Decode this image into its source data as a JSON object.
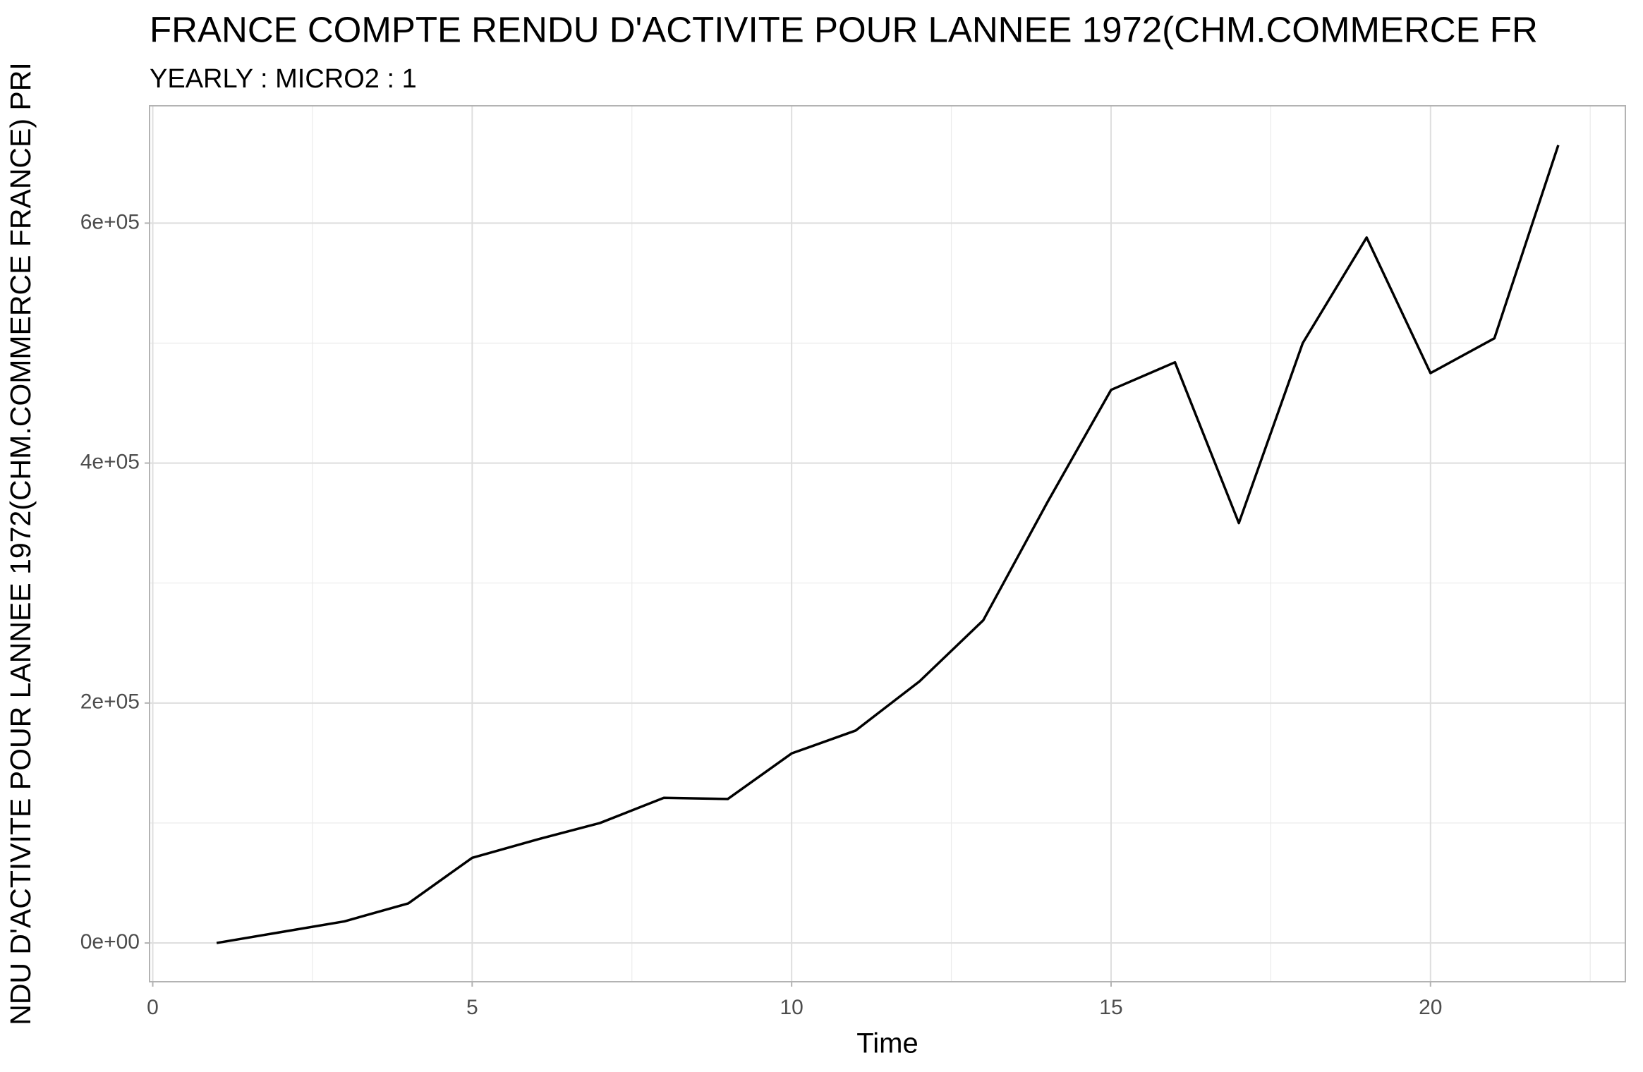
{
  "chart_data": {
    "type": "line",
    "title": "FRANCE COMPTE RENDU D'ACTIVITE POUR LANNEE 1972(CHM.COMMERCE FR",
    "subtitle": "YEARLY : MICRO2 : 1",
    "x_label": "Time",
    "y_label": "NDU D'ACTIVITE POUR LANNEE 1972(CHM.COMMERCE FRANCE) PRI",
    "x": [
      1,
      2,
      3,
      4,
      5,
      6,
      7,
      8,
      9,
      10,
      11,
      12,
      13,
      14,
      15,
      16,
      17,
      18,
      19,
      20,
      21,
      22
    ],
    "values": [
      0,
      9000,
      18000,
      33000,
      71000,
      86000,
      100000,
      121000,
      120000,
      158000,
      177000,
      218000,
      269000,
      367000,
      461000,
      484000,
      350000,
      500000,
      588000,
      475000,
      504000,
      665000
    ],
    "color": "#000000",
    "xlim": [
      -0.05,
      23.05
    ],
    "ylim": [
      -32300,
      697800
    ],
    "xticks": [
      0,
      5,
      10,
      15,
      20
    ],
    "yticks": [
      {
        "value": 0,
        "label": "0e+00"
      },
      {
        "value": 200000,
        "label": "2e+05"
      },
      {
        "value": 400000,
        "label": "4e+05"
      },
      {
        "value": 600000,
        "label": "6e+05"
      }
    ],
    "grid": true
  }
}
